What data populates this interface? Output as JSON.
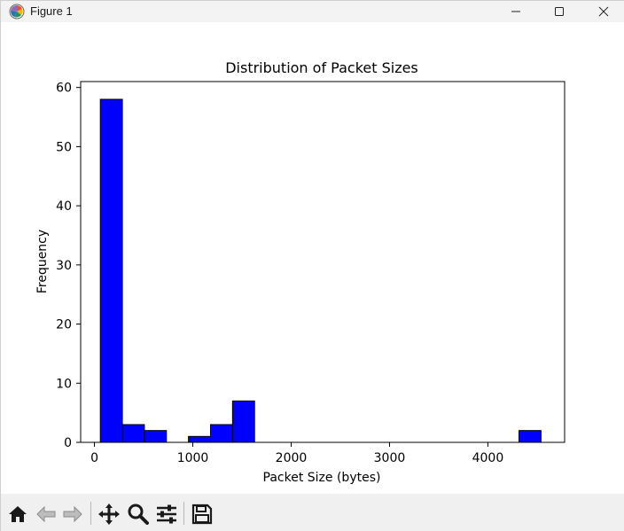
{
  "window": {
    "title": "Figure 1"
  },
  "chart_data": {
    "type": "bar",
    "title": "Distribution of Packet Sizes",
    "xlabel": "Packet Size (bytes)",
    "ylabel": "Frequency",
    "xlim": [
      -140,
      4780
    ],
    "ylim": [
      0,
      61
    ],
    "xticks": [
      0,
      1000,
      2000,
      3000,
      4000
    ],
    "yticks": [
      0,
      10,
      20,
      30,
      40,
      50,
      60
    ],
    "bins": [
      {
        "x0": 60,
        "x1": 284,
        "count": 58
      },
      {
        "x0": 284,
        "x1": 508,
        "count": 3
      },
      {
        "x0": 508,
        "x1": 732,
        "count": 2
      },
      {
        "x0": 732,
        "x1": 956,
        "count": 0
      },
      {
        "x0": 956,
        "x1": 1180,
        "count": 1
      },
      {
        "x0": 1180,
        "x1": 1404,
        "count": 3
      },
      {
        "x0": 1404,
        "x1": 1628,
        "count": 7
      },
      {
        "x0": 1628,
        "x1": 1852,
        "count": 0
      },
      {
        "x0": 1852,
        "x1": 2076,
        "count": 0
      },
      {
        "x0": 2076,
        "x1": 2300,
        "count": 0
      },
      {
        "x0": 2300,
        "x1": 2524,
        "count": 0
      },
      {
        "x0": 2524,
        "x1": 2748,
        "count": 0
      },
      {
        "x0": 2748,
        "x1": 2972,
        "count": 0
      },
      {
        "x0": 2972,
        "x1": 3196,
        "count": 0
      },
      {
        "x0": 3196,
        "x1": 3420,
        "count": 0
      },
      {
        "x0": 3420,
        "x1": 3644,
        "count": 0
      },
      {
        "x0": 3644,
        "x1": 3868,
        "count": 0
      },
      {
        "x0": 3868,
        "x1": 4092,
        "count": 0
      },
      {
        "x0": 4092,
        "x1": 4316,
        "count": 0
      },
      {
        "x0": 4316,
        "x1": 4540,
        "count": 2
      }
    ],
    "bar_color": "#0000ff",
    "edge_color": "#000000",
    "grid": false
  },
  "toolbar": {
    "items": [
      {
        "name": "home-button",
        "icon": "home-icon"
      },
      {
        "name": "back-button",
        "icon": "arrow-left-icon"
      },
      {
        "name": "forward-button",
        "icon": "arrow-right-icon"
      },
      {
        "name": "pan-button",
        "icon": "move-icon"
      },
      {
        "name": "zoom-button",
        "icon": "magnifier-icon"
      },
      {
        "name": "configure-subplots-button",
        "icon": "sliders-icon"
      },
      {
        "name": "save-button",
        "icon": "floppy-disk-icon"
      }
    ]
  }
}
